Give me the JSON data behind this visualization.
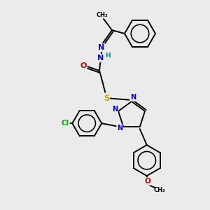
{
  "background_color": "#ebebeb",
  "atom_colors": {
    "C": "#000000",
    "N": "#0000cc",
    "O": "#cc0000",
    "S": "#ccaa00",
    "Cl": "#00aa00",
    "H": "#008888"
  },
  "figsize": [
    3.0,
    3.0
  ],
  "dpi": 100
}
